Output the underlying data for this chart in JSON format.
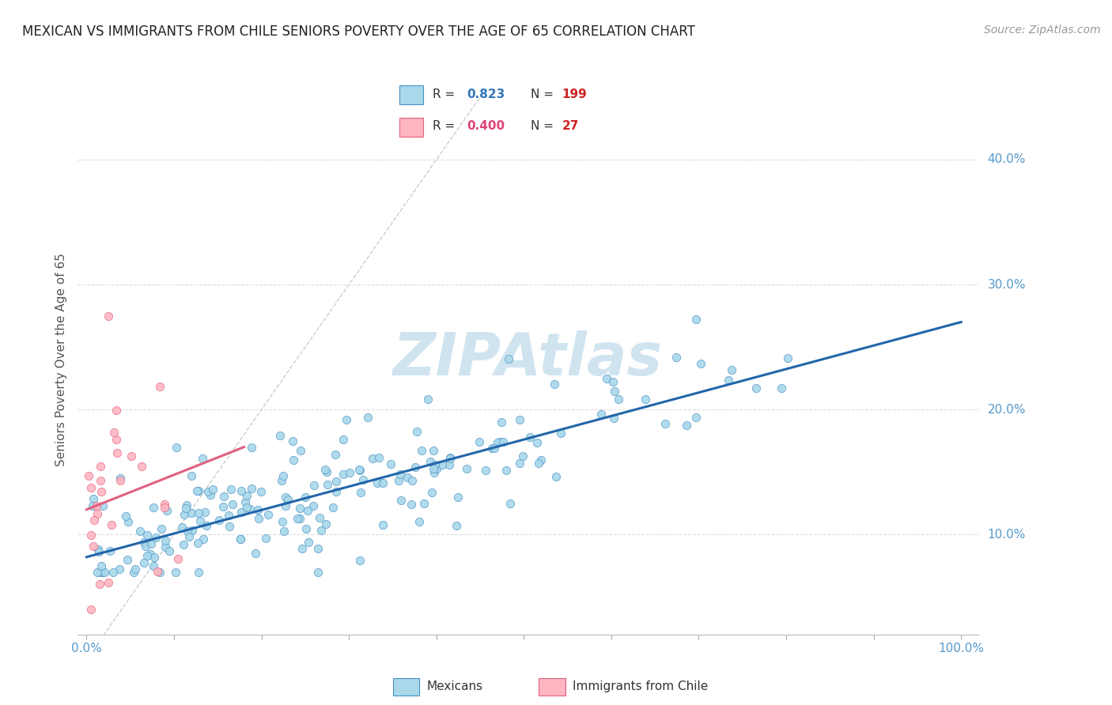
{
  "title": "MEXICAN VS IMMIGRANTS FROM CHILE SENIORS POVERTY OVER THE AGE OF 65 CORRELATION CHART",
  "source": "Source: ZipAtlas.com",
  "ylabel": "Seniors Poverty Over the Age of 65",
  "r_mexican": 0.823,
  "n_mexican": 199,
  "r_chile": 0.4,
  "n_chile": 27,
  "blue_fill": "#A8D8EA",
  "blue_edge": "#4A90C4",
  "pink_fill": "#FFB6C1",
  "pink_edge": "#E06080",
  "blue_line": "#2266AA",
  "pink_line": "#E06080",
  "diag_color": "#CCCCCC",
  "grid_color": "#DDDDDD",
  "watermark_color": "#D0E4F0",
  "bg_color": "#FFFFFF",
  "tick_color": "#5599CC",
  "ylabel_color": "#555555",
  "title_color": "#222222",
  "source_color": "#999999",
  "legend_r_blue": "#3377BB",
  "legend_r_pink": "#DD4477",
  "legend_n_red": "#CC2222",
  "legend_text": "#333333",
  "xlim": [
    -0.01,
    1.02
  ],
  "ylim": [
    0.02,
    0.46
  ],
  "x_tick_pos": [
    0.0,
    0.1,
    0.2,
    0.3,
    0.4,
    0.5,
    0.6,
    0.7,
    0.8,
    0.9,
    1.0
  ],
  "y_tick_pos": [
    0.1,
    0.2,
    0.3,
    0.4
  ],
  "mex_line_x": [
    0.0,
    1.0
  ],
  "mex_line_y": [
    0.082,
    0.27
  ],
  "chile_line_x": [
    0.0,
    0.18
  ],
  "chile_line_y": [
    0.12,
    0.17
  ]
}
